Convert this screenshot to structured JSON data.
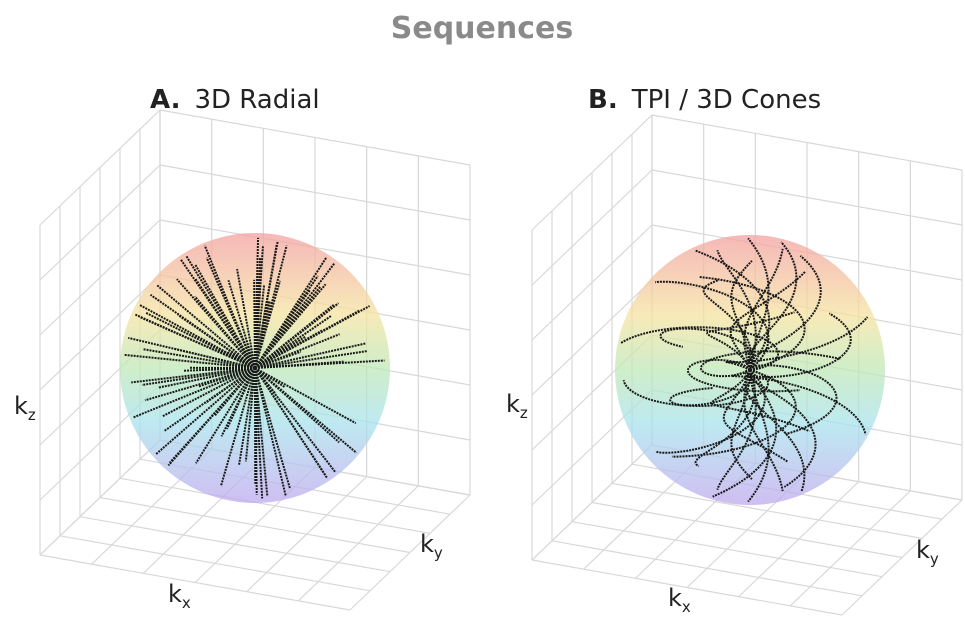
{
  "title": "Sequences",
  "panels": [
    {
      "letter": "A.",
      "name": "3D Radial",
      "axes": {
        "z": {
          "base": "k",
          "sub": "z"
        },
        "x": {
          "base": "k",
          "sub": "x"
        },
        "y": {
          "base": "k",
          "sub": "y"
        }
      }
    },
    {
      "letter": "B.",
      "name": "TPI / 3D Cones",
      "axes": {
        "z": {
          "base": "k",
          "sub": "z"
        },
        "x": {
          "base": "k",
          "sub": "x"
        },
        "y": {
          "base": "k",
          "sub": "y"
        }
      }
    }
  ]
}
